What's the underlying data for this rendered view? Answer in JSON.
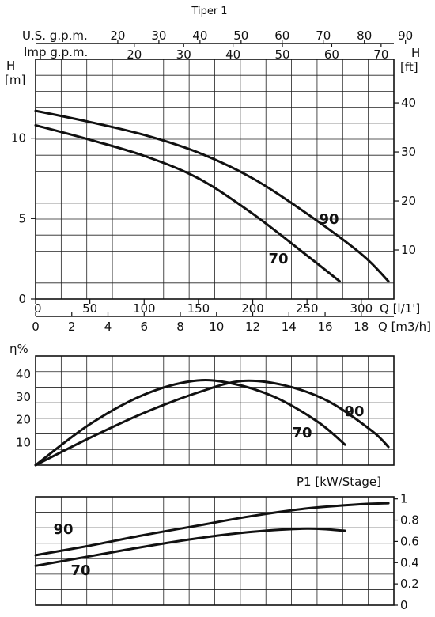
{
  "title": "Tiper 1",
  "top_axes": {
    "us_label": "U.S. g.p.m.",
    "us_ticks": [
      "20",
      "30",
      "40",
      "50",
      "60",
      "70",
      "80",
      "90"
    ],
    "imp_label": "Imp g.p.m.",
    "imp_ticks": [
      "20",
      "30",
      "40",
      "50",
      "60",
      "70"
    ]
  },
  "chart_data": [
    {
      "type": "line",
      "panel": "head",
      "ylabel_left": "H [m]",
      "ylabel_right": "H [ft]",
      "xlabel_q_ls": "Q [l/1']",
      "xlabel_q_m3h": "Q [m3/h]",
      "x_ticks_ls": [
        "0",
        "50",
        "100",
        "150",
        "200",
        "250",
        "300"
      ],
      "x_ticks_m3h": [
        "0",
        "2",
        "4",
        "6",
        "8",
        "10",
        "12",
        "14",
        "16",
        "18"
      ],
      "xlim": [
        0,
        330
      ],
      "y_ticks_left": [
        "0",
        "5",
        "10"
      ],
      "ylim": [
        0,
        14.9
      ],
      "y_ticks_right": [
        "10",
        "20",
        "30",
        "40"
      ],
      "grid": true,
      "series": [
        {
          "name": "90",
          "x": [
            0,
            50,
            100,
            150,
            200,
            250,
            300,
            325
          ],
          "y": [
            11.7,
            11.0,
            10.2,
            9.1,
            7.5,
            5.3,
            2.8,
            1.1
          ]
        },
        {
          "name": "70",
          "x": [
            0,
            50,
            100,
            150,
            200,
            250,
            280
          ],
          "y": [
            10.8,
            9.9,
            8.9,
            7.5,
            5.3,
            2.7,
            1.1
          ]
        }
      ]
    },
    {
      "type": "line",
      "panel": "efficiency",
      "ylabel": "η%",
      "y_ticks": [
        "10",
        "20",
        "30",
        "40"
      ],
      "ylim": [
        0,
        48
      ],
      "xlim": [
        0,
        330
      ],
      "grid": true,
      "series": [
        {
          "name": "90",
          "x": [
            0,
            50,
            100,
            150,
            190,
            230,
            270,
            310,
            325
          ],
          "y": [
            0,
            12,
            23,
            32,
            37,
            35,
            28,
            15,
            8
          ]
        },
        {
          "name": "70",
          "x": [
            0,
            50,
            100,
            145,
            180,
            220,
            260,
            285
          ],
          "y": [
            0,
            18,
            31,
            37,
            36,
            30,
            19,
            9
          ]
        }
      ]
    },
    {
      "type": "line",
      "panel": "power",
      "ylabel": "P1 [kW/Stage]",
      "y_ticks": [
        "0",
        "0.2",
        "0.4",
        "0.6",
        "0.8",
        "1"
      ],
      "ylim": [
        0,
        1.02
      ],
      "xlim": [
        0,
        330
      ],
      "grid": true,
      "series": [
        {
          "name": "90",
          "x": [
            0,
            50,
            100,
            150,
            200,
            250,
            300,
            325
          ],
          "y": [
            0.47,
            0.56,
            0.66,
            0.75,
            0.84,
            0.91,
            0.95,
            0.96
          ]
        },
        {
          "name": "70",
          "x": [
            0,
            50,
            100,
            150,
            200,
            250,
            285
          ],
          "y": [
            0.37,
            0.46,
            0.55,
            0.63,
            0.69,
            0.72,
            0.7
          ]
        }
      ]
    }
  ]
}
